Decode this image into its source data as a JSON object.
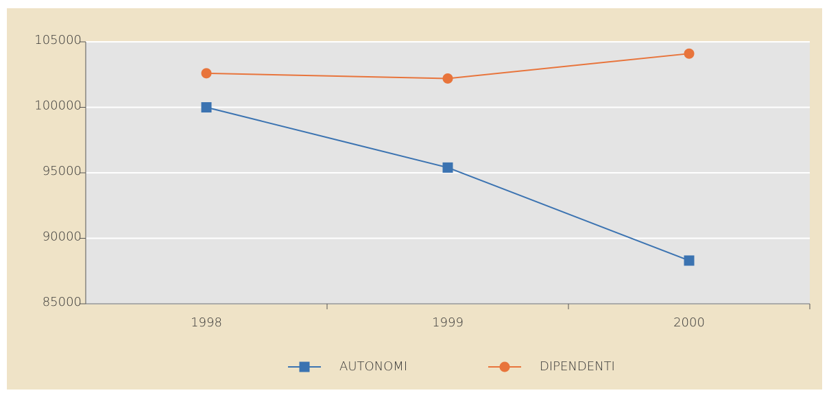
{
  "chart_data": {
    "type": "line",
    "categories": [
      "1998",
      "1999",
      "2000"
    ],
    "series": [
      {
        "name": "AUTONOMI",
        "color": "#3b73b1",
        "marker": "square",
        "values": [
          100000,
          95400,
          88300
        ]
      },
      {
        "name": "DIPENDENTI",
        "color": "#e8743b",
        "marker": "circle",
        "values": [
          102600,
          102200,
          104100
        ]
      }
    ],
    "ylim": [
      85000,
      105000
    ],
    "yticks": [
      85000,
      90000,
      95000,
      100000,
      105000
    ],
    "grid": true
  }
}
